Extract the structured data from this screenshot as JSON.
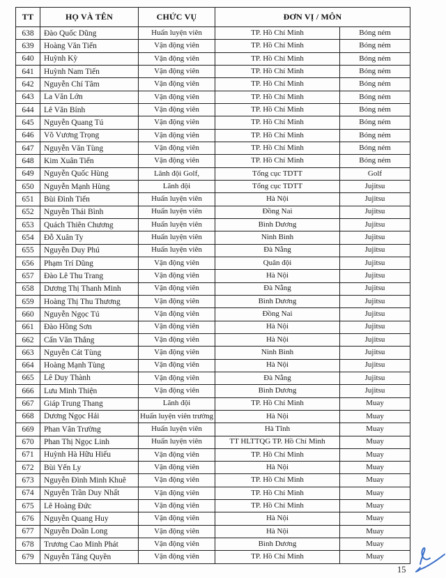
{
  "document": {
    "page_number": "15",
    "signature_icon": "handwritten-initials-signature"
  },
  "colors": {
    "border": "#1c1c1c",
    "text": "#1b1b1b",
    "signature_ink": "#3a6fc9",
    "page_background": "#fdfdfd"
  },
  "table": {
    "columns": [
      "TT",
      "HỌ VÀ TÊN",
      "CHỨC VỤ",
      "ĐƠN VỊ / MÔN"
    ],
    "rows": [
      [
        "638",
        "Đào Quốc Dũng",
        "Huấn luyện viên",
        "TP. Hồ Chí Minh",
        "Bóng ném"
      ],
      [
        "639",
        "Hoàng Văn Tiến",
        "Vận động viên",
        "TP. Hồ Chí Minh",
        "Bóng ném"
      ],
      [
        "640",
        "Huỳnh Kỳ",
        "Vận động viên",
        "TP. Hồ Chí Minh",
        "Bóng ném"
      ],
      [
        "641",
        "Huỳnh Nam Tiến",
        "Vận động viên",
        "TP. Hồ Chí Minh",
        "Bóng ném"
      ],
      [
        "642",
        "Nguyễn Chí Tâm",
        "Vận động viên",
        "TP. Hồ Chí Minh",
        "Bóng ném"
      ],
      [
        "643",
        "La Văn Lớn",
        "Vận động viên",
        "TP. Hồ Chí Minh",
        "Bóng ném"
      ],
      [
        "644",
        "Lê Văn Bính",
        "Vận động viên",
        "TP. Hồ Chí Minh",
        "Bóng ném"
      ],
      [
        "645",
        "Nguyễn Quang Tú",
        "Vận động viên",
        "TP. Hồ Chí Minh",
        "Bóng ném"
      ],
      [
        "646",
        "Võ Vương Trọng",
        "Vận động viên",
        "TP. Hồ Chí Minh",
        "Bóng ném"
      ],
      [
        "647",
        "Nguyễn Văn Tùng",
        "Vận động viên",
        "TP. Hồ Chí Minh",
        "Bóng ném"
      ],
      [
        "648",
        "Kim Xuân Tiến",
        "Vận động viên",
        "TP. Hồ Chí Minh",
        "Bóng ném"
      ],
      [
        "649",
        "Nguyễn Quốc Hùng",
        "Lãnh đội Golf,",
        "Tổng cục TDTT",
        "Golf"
      ],
      [
        "650",
        "Nguyễn Mạnh Hùng",
        "Lãnh đội",
        "Tổng cục TDTT",
        "Jujitsu"
      ],
      [
        "651",
        "Bùi Đình Tiến",
        "Huấn luyện viên",
        "Hà Nội",
        "Jujitsu"
      ],
      [
        "652",
        "Nguyễn Thái Bình",
        "Huấn luyện viên",
        "Đồng Nai",
        "Jujitsu"
      ],
      [
        "653",
        "Quách Thiên Chương",
        "Huấn luyện viên",
        "Bình Dương",
        "Jujitsu"
      ],
      [
        "654",
        "Đỗ Xuân Ty",
        "Huấn luyện viên",
        "Ninh Bình",
        "Jujitsu"
      ],
      [
        "655",
        "Nguyễn Duy Phú",
        "Huấn luyện viên",
        "Đà Nẵng",
        "Jujitsu"
      ],
      [
        "656",
        "Phạm Trí Dũng",
        "Vận động viên",
        "Quân đội",
        "Jujitsu"
      ],
      [
        "657",
        "Đào Lê Thu Trang",
        "Vận động viên",
        "Hà Nội",
        "Jujitsu"
      ],
      [
        "658",
        "Dương Thị Thanh Minh",
        "Vận động viên",
        "Đà Nẵng",
        "Jujitsu"
      ],
      [
        "659",
        "Hoàng Thị Thu Thương",
        "Vận động viên",
        "Bình Dương",
        "Jujitsu"
      ],
      [
        "660",
        "Nguyễn Ngọc Tú",
        "Vận động viên",
        "Đồng Nai",
        "Jujitsu"
      ],
      [
        "661",
        "Đào Hồng Sơn",
        "Vận động viên",
        "Hà Nội",
        "Jujitsu"
      ],
      [
        "662",
        "Cấn Văn Thắng",
        "Vận động viên",
        "Hà Nội",
        "Jujitsu"
      ],
      [
        "663",
        "Nguyễn Cát Tùng",
        "Vận động viên",
        "Ninh Bình",
        "Jujitsu"
      ],
      [
        "664",
        "Hoàng Mạnh Tùng",
        "Vận động viên",
        "Hà Nội",
        "Jujitsu"
      ],
      [
        "665",
        "Lê Duy Thành",
        "Vận động viên",
        "Đà Nẵng",
        "Jujitsu"
      ],
      [
        "666",
        "Lưu Minh Thiện",
        "Vận động viên",
        "Bình Dương",
        "Jujitsu"
      ],
      [
        "667",
        "Giáp Trung Thang",
        "Lãnh đội",
        "TP. Hồ Chí Minh",
        "Muay"
      ],
      [
        "668",
        "Dương Ngọc Hải",
        "Huấn luyện viên trưởng",
        "Hà Nội",
        "Muay"
      ],
      [
        "669",
        "Phan Vân Trường",
        "Huấn luyện viên",
        "Hà Tĩnh",
        "Muay"
      ],
      [
        "670",
        "Phan Thị Ngọc Linh",
        "Huấn luyện viên",
        "TT HLTTQG TP. Hồ Chí Minh",
        "Muay"
      ],
      [
        "671",
        "Huỳnh Hà Hữu Hiếu",
        "Vận động viên",
        "TP. Hồ Chí Minh",
        "Muay"
      ],
      [
        "672",
        "Bùi Yến Ly",
        "Vận động viên",
        "Hà Nội",
        "Muay"
      ],
      [
        "673",
        "Nguyễn Đình Minh Khuê",
        "Vận động viên",
        "TP. Hồ Chí Minh",
        "Muay"
      ],
      [
        "674",
        "Nguyễn Trần Duy Nhất",
        "Vận động viên",
        "TP. Hồ Chí Minh",
        "Muay"
      ],
      [
        "675",
        "Lê Hoàng Đức",
        "Vận động viên",
        "TP. Hồ Chí Minh",
        "Muay"
      ],
      [
        "676",
        "Nguyễn Quang Huy",
        "Vận động viên",
        "Hà Nội",
        "Muay"
      ],
      [
        "677",
        "Nguyễn Doãn Long",
        "Vận động viên",
        "Hà Nội",
        "Muay"
      ],
      [
        "678",
        "Trương Cao Minh Phát",
        "Vận động viên",
        "Bình Dương",
        "Muay"
      ],
      [
        "679",
        "Nguyễn Tăng Quyền",
        "Vận động viên",
        "TP. Hồ Chí Minh",
        "Muay"
      ]
    ]
  }
}
